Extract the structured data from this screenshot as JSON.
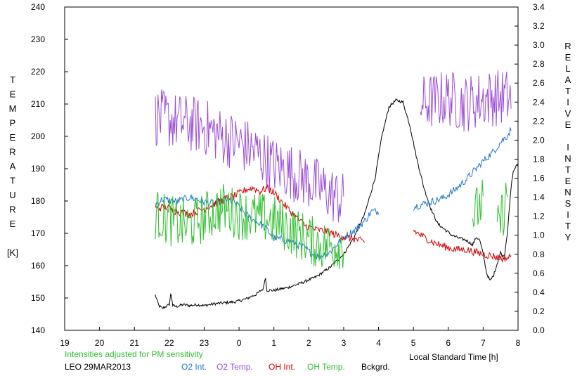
{
  "chart_data": {
    "type": "line",
    "left_axis": {
      "label_letters": [
        "T",
        "E",
        "M",
        "P",
        "E",
        "R",
        "A",
        "T",
        "U",
        "R",
        "E",
        "",
        "[K]"
      ],
      "ylim": [
        140,
        240
      ],
      "ticks": [
        "140",
        "150",
        "160",
        "170",
        "180",
        "190",
        "200",
        "210",
        "220",
        "230",
        "240"
      ]
    },
    "right_axis": {
      "label_letters": [
        "R",
        "E",
        "L",
        "A",
        "T",
        "I",
        "V",
        "E",
        "",
        "I",
        "N",
        "T",
        "E",
        "N",
        "S",
        "I",
        "T",
        "Y"
      ],
      "ylim": [
        0.0,
        3.4
      ],
      "ticks": [
        "0.0",
        "0.2",
        "0.4",
        "0.6",
        "0.8",
        "1.0",
        "1.2",
        "1.4",
        "1.6",
        "1.8",
        "2.0",
        "2.2",
        "2.4",
        "2.6",
        "2.8",
        "3.0",
        "3.2",
        "3.4"
      ]
    },
    "x_axis": {
      "label": "Local Standard Time [h]",
      "ticks": [
        "19",
        "20",
        "21",
        "22",
        "23",
        "0",
        "1",
        "2",
        "3",
        "4",
        "5",
        "6",
        "7",
        "8"
      ],
      "range_hours_after_19": [
        0,
        13
      ]
    },
    "annotation": "Intensities adjusted for PM sensitivity",
    "station_date": "LEO 29MAR2013",
    "legend": [
      {
        "label": "O2 Int.",
        "color": "#1f77d0"
      },
      {
        "label": "O2 Temp.",
        "color": "#9b4fd6"
      },
      {
        "label": "OH Int.",
        "color": "#d40000"
      },
      {
        "label": "OH Temp.",
        "color": "#2fbf2f"
      },
      {
        "label": "Bckgrd.",
        "color": "#000000"
      }
    ],
    "series": [
      {
        "name": "Bckgrd.",
        "axis": "right",
        "color": "#000000",
        "noise": 0.015,
        "x": [
          21.6,
          21.7,
          21.8,
          21.9,
          22.0,
          22.05,
          22.1,
          22.2,
          22.4,
          22.6,
          22.8,
          23.0,
          23.3,
          23.6,
          23.9,
          24.2,
          24.5,
          24.7,
          24.75,
          24.8,
          25.0,
          25.4,
          25.8,
          26.2,
          26.6,
          27.0,
          27.3,
          27.6,
          27.9,
          28.1,
          28.3,
          28.5,
          28.7,
          28.9,
          29.1,
          29.3,
          29.5,
          29.7,
          29.9,
          30.1,
          30.3,
          30.5,
          30.7,
          30.8,
          30.9,
          31.0,
          31.1,
          31.2,
          31.3,
          31.4,
          31.5,
          31.6,
          31.7,
          31.8,
          31.85,
          31.9,
          32.0
        ],
        "y": [
          0.37,
          0.26,
          0.23,
          0.25,
          0.27,
          0.4,
          0.26,
          0.25,
          0.27,
          0.26,
          0.27,
          0.26,
          0.28,
          0.29,
          0.3,
          0.33,
          0.38,
          0.44,
          0.57,
          0.42,
          0.42,
          0.45,
          0.5,
          0.56,
          0.66,
          0.8,
          0.98,
          1.22,
          1.6,
          2.05,
          2.35,
          2.42,
          2.4,
          2.15,
          1.8,
          1.5,
          1.28,
          1.12,
          1.06,
          1.0,
          0.97,
          0.95,
          0.9,
          0.98,
          0.95,
          0.8,
          0.6,
          0.52,
          0.58,
          0.7,
          0.82,
          0.75,
          1.05,
          1.5,
          1.65,
          1.7,
          1.75
        ]
      },
      {
        "name": "O2 Int.",
        "axis": "right",
        "color": "#1f77d0",
        "noise": 0.04,
        "segments": [
          {
            "x": [
              21.6,
              21.8,
              22.2,
              22.6,
              23.0,
              23.3,
              23.6,
              23.8,
              24.0,
              24.2,
              24.4,
              24.6,
              24.8,
              25.0,
              25.3,
              25.6,
              25.9,
              26.1,
              26.3,
              26.6,
              26.8,
              27.0,
              27.3,
              27.6,
              27.8,
              28.0
            ],
            "y": [
              1.32,
              1.38,
              1.35,
              1.4,
              1.35,
              1.33,
              1.38,
              1.36,
              1.3,
              1.22,
              1.16,
              1.12,
              1.06,
              0.97,
              0.95,
              0.92,
              0.86,
              0.8,
              0.78,
              0.82,
              0.9,
              0.98,
              1.05,
              1.15,
              1.25,
              1.25
            ]
          },
          {
            "x": [
              29.0,
              29.3,
              29.6,
              29.9,
              30.2,
              30.5,
              30.8,
              31.0,
              31.3,
              31.5,
              31.7,
              31.8
            ],
            "y": [
              1.3,
              1.33,
              1.36,
              1.4,
              1.48,
              1.58,
              1.7,
              1.78,
              1.88,
              1.98,
              2.05,
              2.12
            ]
          }
        ]
      },
      {
        "name": "O2 Temp.",
        "axis": "left",
        "color": "#9b4fd6",
        "noise": 9,
        "segments": [
          {
            "x": [
              21.6,
              22.0,
              22.5,
              23.0,
              23.5,
              24.0,
              24.5,
              25.0,
              25.5,
              26.0,
              26.5,
              27.0
            ],
            "y": [
              206,
              205,
              204,
              203,
              200,
              198,
              195,
              191,
              189,
              186,
              183,
              180
            ]
          },
          {
            "x": [
              29.2,
              29.6,
              30.0,
              30.4,
              30.8,
              31.2,
              31.6,
              31.8
            ],
            "y": [
              210,
              211,
              212,
              210,
              211,
              212,
              212,
              212
            ]
          }
        ]
      },
      {
        "name": "OH Int.",
        "axis": "right",
        "color": "#d40000",
        "noise": 0.04,
        "segments": [
          {
            "x": [
              21.6,
              21.9,
              22.2,
              22.6,
              23.0,
              23.3,
              23.6,
              23.9,
              24.2,
              24.4,
              24.6,
              24.8,
              25.0,
              25.3,
              25.6,
              25.9,
              26.2,
              26.5,
              26.8,
              27.0,
              27.3,
              27.6
            ],
            "y": [
              1.28,
              1.3,
              1.25,
              1.22,
              1.28,
              1.33,
              1.38,
              1.42,
              1.48,
              1.5,
              1.46,
              1.5,
              1.45,
              1.32,
              1.2,
              1.1,
              1.06,
              1.04,
              1.0,
              0.98,
              0.96,
              0.93
            ]
          },
          {
            "x": [
              29.0,
              29.3,
              29.6,
              29.9,
              30.2,
              30.5,
              30.8,
              31.0,
              31.3,
              31.5,
              31.7,
              31.8
            ],
            "y": [
              1.05,
              0.98,
              0.92,
              0.88,
              0.85,
              0.85,
              0.82,
              0.8,
              0.78,
              0.76,
              0.76,
              0.78
            ]
          }
        ]
      },
      {
        "name": "OH Temp.",
        "axis": "left",
        "color": "#2fbf2f",
        "noise": 8,
        "segments": [
          {
            "x": [
              21.6,
              22.0,
              22.5,
              23.0,
              23.5,
              24.0,
              24.5,
              25.0,
              25.5,
              26.0,
              26.5,
              27.0
            ],
            "y": [
              176,
              174,
              172,
              175,
              178,
              176,
              175,
              174,
              171,
              168,
              166,
              167
            ]
          },
          {
            "x": [
              30.7,
              31.0
            ],
            "y": [
              175,
              180
            ]
          },
          {
            "x": [
              31.4,
              31.6,
              31.7
            ],
            "y": [
              170,
              178,
              182
            ]
          }
        ]
      }
    ]
  }
}
